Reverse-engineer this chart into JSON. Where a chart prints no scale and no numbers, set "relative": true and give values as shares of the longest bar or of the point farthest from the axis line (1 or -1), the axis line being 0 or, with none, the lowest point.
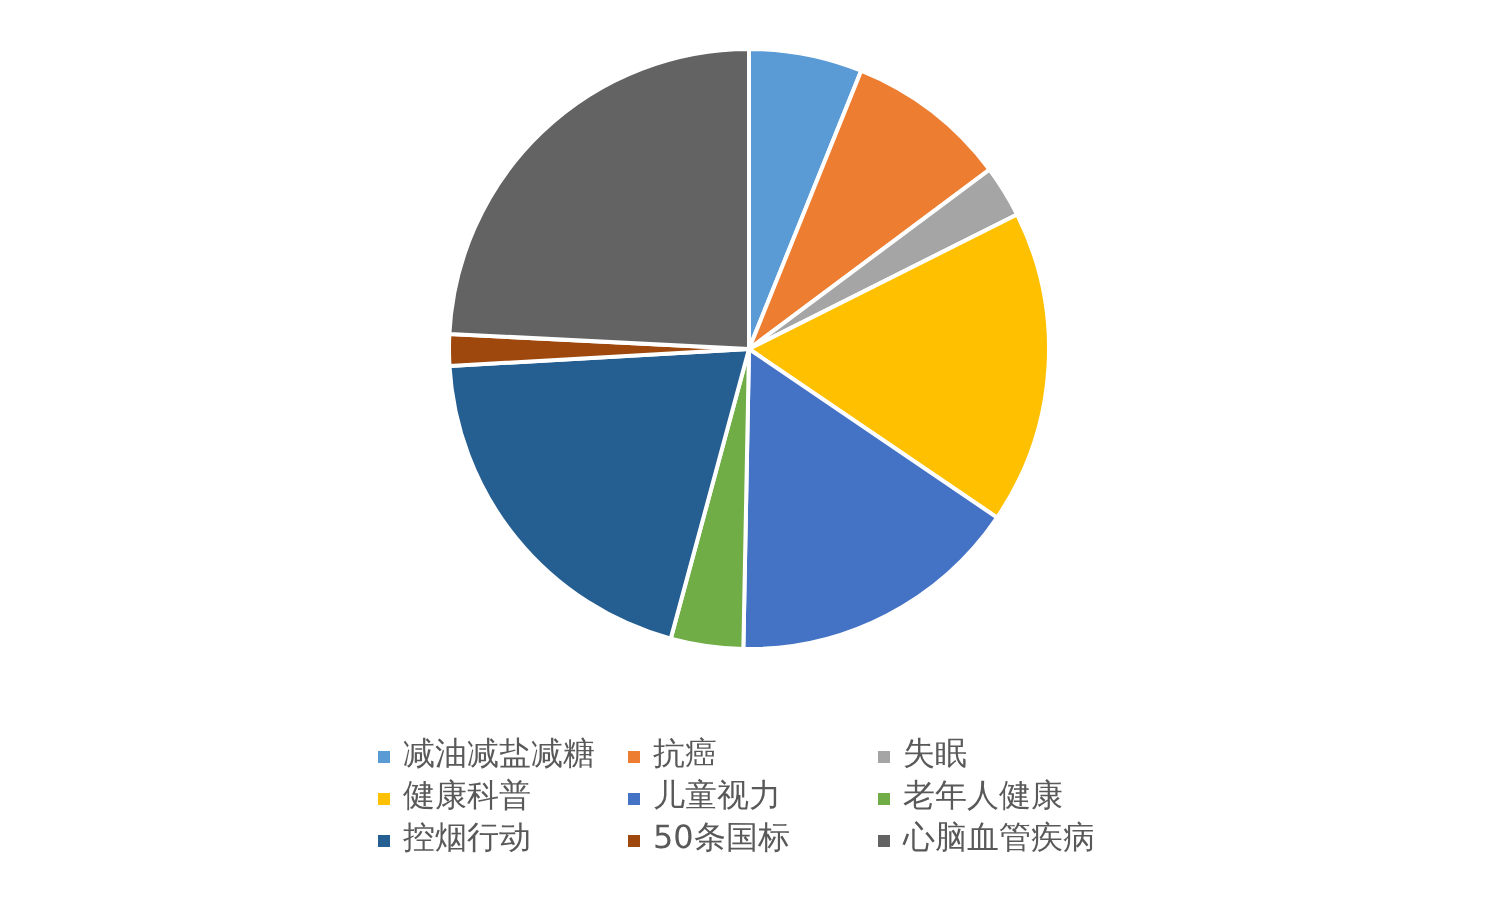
{
  "chart_data": {
    "type": "pie",
    "relative": true,
    "categories": [
      "减油减盐减糖",
      "抗癌",
      "失眠",
      "健康科普",
      "儿童视力",
      "老年人健康",
      "控烟行动",
      "50条国标",
      "心脑血管疾病"
    ],
    "values": [
      6.1,
      8.7,
      2.8,
      16.9,
      15.8,
      3.9,
      19.9,
      1.7,
      24.2
    ],
    "colors": [
      "#5b9bd5",
      "#ed7d31",
      "#a5a5a5",
      "#ffc000",
      "#4472c4",
      "#70ad47",
      "#255e91",
      "#9e480e",
      "#636363"
    ],
    "legend": "bottom"
  }
}
